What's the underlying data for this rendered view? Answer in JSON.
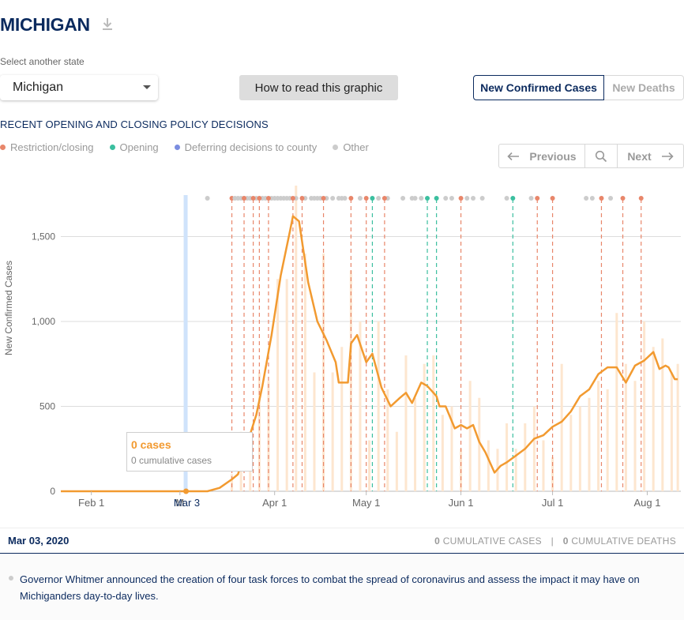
{
  "header": {
    "state_title": "MICHIGAN"
  },
  "selector": {
    "label": "Select another state",
    "value": "Michigan"
  },
  "buttons": {
    "how_to_read": "How to read this graphic"
  },
  "toggle": {
    "active": "New Confirmed Cases",
    "inactive": "New Deaths"
  },
  "policy": {
    "heading": "RECENT OPENING AND CLOSING POLICY DECISIONS"
  },
  "legend": [
    {
      "label": "Restriction/closing",
      "color": "#e8866a"
    },
    {
      "label": "Opening",
      "color": "#3bbf9f"
    },
    {
      "label": "Deferring decisions to county",
      "color": "#7b8de0"
    },
    {
      "label": "Other",
      "color": "#cccccc"
    }
  ],
  "nav": {
    "previous": "Previous",
    "next": "Next"
  },
  "tooltip": {
    "cases": "0 cases",
    "cumulative": "0 cumulative cases"
  },
  "footer": {
    "date": "Mar 03, 2020",
    "cum_cases_value": "0",
    "cum_cases_label": "CUMULATIVE CASES",
    "separator": "|",
    "cum_deaths_value": "0",
    "cum_deaths_label": "CUMULATIVE DEATHS"
  },
  "event": {
    "text": "Governor Whitmer announced the creation of four task forces to combat the spread of coronavirus and assess the impact it may have on Michiganders day-to-day lives."
  },
  "chart_data": {
    "type": "line",
    "title": "",
    "ylabel": "New Confirmed Cases",
    "xlabel": "",
    "ylim": [
      0,
      1800
    ],
    "xlim": [
      "2020-01-22",
      "2020-08-12"
    ],
    "yticks": [
      0,
      500,
      1000,
      1500
    ],
    "ytick_labels": [
      "0",
      "500",
      "1,000",
      "1,500"
    ],
    "xticks": [
      {
        "date": "2020-02-01",
        "label": "Feb 1"
      },
      {
        "date": "2020-03-01",
        "label": "M"
      },
      {
        "date": "2020-04-01",
        "label": "Apr 1"
      },
      {
        "date": "2020-05-01",
        "label": "May 1"
      },
      {
        "date": "2020-06-01",
        "label": "Jun 1"
      },
      {
        "date": "2020-07-01",
        "label": "Jul 1"
      },
      {
        "date": "2020-08-01",
        "label": "Aug 1"
      }
    ],
    "highlight": {
      "date": "2020-03-03",
      "label": "Mar 3",
      "value": 0
    },
    "grid": true,
    "series": [
      {
        "kind": "rolling-average-line",
        "color": "#f29a30",
        "x": [
          "2020-01-22",
          "2020-03-10",
          "2020-03-14",
          "2020-03-18",
          "2020-03-20",
          "2020-03-23",
          "2020-03-26",
          "2020-03-28",
          "2020-03-31",
          "2020-04-03",
          "2020-04-06",
          "2020-04-07",
          "2020-04-09",
          "2020-04-12",
          "2020-04-15",
          "2020-04-18",
          "2020-04-21",
          "2020-04-22",
          "2020-04-25",
          "2020-04-26",
          "2020-04-28",
          "2020-05-01",
          "2020-05-03",
          "2020-05-06",
          "2020-05-09",
          "2020-05-12",
          "2020-05-14",
          "2020-05-16",
          "2020-05-19",
          "2020-05-21",
          "2020-05-24",
          "2020-05-25",
          "2020-05-27",
          "2020-05-30",
          "2020-06-01",
          "2020-06-03",
          "2020-06-05",
          "2020-06-07",
          "2020-06-09",
          "2020-06-12",
          "2020-06-14",
          "2020-06-16",
          "2020-06-19",
          "2020-06-22",
          "2020-06-25",
          "2020-06-28",
          "2020-07-01",
          "2020-07-04",
          "2020-07-07",
          "2020-07-10",
          "2020-07-13",
          "2020-07-16",
          "2020-07-19",
          "2020-07-22",
          "2020-07-25",
          "2020-07-28",
          "2020-07-31",
          "2020-08-03",
          "2020-08-05",
          "2020-08-07",
          "2020-08-08",
          "2020-08-10",
          "2020-08-11"
        ],
        "y": [
          0,
          0,
          20,
          70,
          100,
          280,
          450,
          620,
          920,
          1270,
          1530,
          1620,
          1590,
          1230,
          1000,
          890,
          760,
          640,
          640,
          870,
          920,
          760,
          810,
          610,
          500,
          550,
          580,
          520,
          640,
          620,
          560,
          500,
          500,
          370,
          390,
          370,
          390,
          290,
          230,
          110,
          150,
          170,
          210,
          250,
          310,
          330,
          380,
          410,
          470,
          560,
          600,
          690,
          730,
          730,
          640,
          740,
          770,
          820,
          720,
          740,
          730,
          660,
          660
        ]
      }
    ],
    "daily_bars": {
      "kind": "daily-new-cases",
      "color": "#fde6cf",
      "x": [
        "2020-03-18",
        "2020-03-21",
        "2020-03-24",
        "2020-03-27",
        "2020-03-30",
        "2020-04-02",
        "2020-04-05",
        "2020-04-08",
        "2020-04-11",
        "2020-04-14",
        "2020-04-17",
        "2020-04-20",
        "2020-04-23",
        "2020-04-26",
        "2020-04-29",
        "2020-05-02",
        "2020-05-05",
        "2020-05-08",
        "2020-05-11",
        "2020-05-14",
        "2020-05-17",
        "2020-05-20",
        "2020-05-23",
        "2020-05-26",
        "2020-05-29",
        "2020-06-01",
        "2020-06-04",
        "2020-06-07",
        "2020-06-10",
        "2020-06-13",
        "2020-06-16",
        "2020-06-19",
        "2020-06-22",
        "2020-06-25",
        "2020-06-28",
        "2020-07-01",
        "2020-07-04",
        "2020-07-07",
        "2020-07-10",
        "2020-07-13",
        "2020-07-16",
        "2020-07-19",
        "2020-07-22",
        "2020-07-25",
        "2020-07-28",
        "2020-07-31",
        "2020-08-03",
        "2020-08-06",
        "2020-08-09",
        "2020-08-11"
      ],
      "y": [
        100,
        350,
        300,
        700,
        650,
        1250,
        1250,
        1800,
        1400,
        700,
        1400,
        700,
        850,
        1300,
        1000,
        300,
        1000,
        600,
        350,
        800,
        550,
        750,
        800,
        450,
        500,
        250,
        650,
        550,
        300,
        250,
        400,
        250,
        400,
        500,
        300,
        200,
        750,
        450,
        500,
        550,
        650,
        600,
        1050,
        750,
        650,
        1000,
        850,
        900,
        700,
        750
      ]
    },
    "policy_events": [
      {
        "date": "2020-03-10",
        "category": "Other",
        "line": false
      },
      {
        "date": "2020-03-18",
        "category": "Restriction/closing",
        "line": true
      },
      {
        "date": "2020-03-22",
        "category": "Restriction/closing",
        "line": true
      },
      {
        "date": "2020-03-25",
        "category": "Restriction/closing",
        "line": true
      },
      {
        "date": "2020-03-27",
        "category": "Restriction/closing",
        "line": true
      },
      {
        "date": "2020-03-30",
        "category": "Restriction/closing",
        "line": true
      },
      {
        "date": "2020-04-07",
        "category": "Restriction/closing",
        "line": true
      },
      {
        "date": "2020-04-10",
        "category": "Restriction/closing",
        "line": true
      },
      {
        "date": "2020-04-17",
        "category": "Restriction/closing",
        "line": true
      },
      {
        "date": "2020-04-26",
        "category": "Restriction/closing",
        "line": true
      },
      {
        "date": "2020-05-01",
        "category": "Restriction/closing",
        "line": true
      },
      {
        "date": "2020-05-03",
        "category": "Opening",
        "line": true
      },
      {
        "date": "2020-05-07",
        "category": "Restriction/closing",
        "line": true
      },
      {
        "date": "2020-05-21",
        "category": "Opening",
        "line": true
      },
      {
        "date": "2020-05-24",
        "category": "Opening",
        "line": true
      },
      {
        "date": "2020-06-01",
        "category": "Restriction/closing",
        "line": true
      },
      {
        "date": "2020-06-18",
        "category": "Opening",
        "line": true
      },
      {
        "date": "2020-06-26",
        "category": "Restriction/closing",
        "line": true
      },
      {
        "date": "2020-07-01",
        "category": "Restriction/closing",
        "line": true
      },
      {
        "date": "2020-07-17",
        "category": "Restriction/closing",
        "line": true
      },
      {
        "date": "2020-07-24",
        "category": "Restriction/closing",
        "line": true
      },
      {
        "date": "2020-07-30",
        "category": "Restriction/closing",
        "line": true
      },
      {
        "date": "2020-03-19",
        "category": "Other",
        "line": false
      },
      {
        "date": "2020-04-02",
        "category": "Other",
        "line": false
      },
      {
        "date": "2020-04-13",
        "category": "Other",
        "line": false
      },
      {
        "date": "2020-04-22",
        "category": "Other",
        "line": false
      },
      {
        "date": "2020-05-05",
        "category": "Other",
        "line": false
      },
      {
        "date": "2020-05-13",
        "category": "Other",
        "line": false
      },
      {
        "date": "2020-05-17",
        "category": "Other",
        "line": false
      },
      {
        "date": "2020-05-27",
        "category": "Other",
        "line": false
      },
      {
        "date": "2020-05-29",
        "category": "Other",
        "line": false
      },
      {
        "date": "2020-06-05",
        "category": "Other",
        "line": false
      },
      {
        "date": "2020-06-08",
        "category": "Other",
        "line": false
      },
      {
        "date": "2020-06-16",
        "category": "Other",
        "line": false
      },
      {
        "date": "2020-06-24",
        "category": "Other",
        "line": false
      },
      {
        "date": "2020-07-12",
        "category": "Other",
        "line": false
      },
      {
        "date": "2020-07-14",
        "category": "Other",
        "line": false
      }
    ]
  }
}
